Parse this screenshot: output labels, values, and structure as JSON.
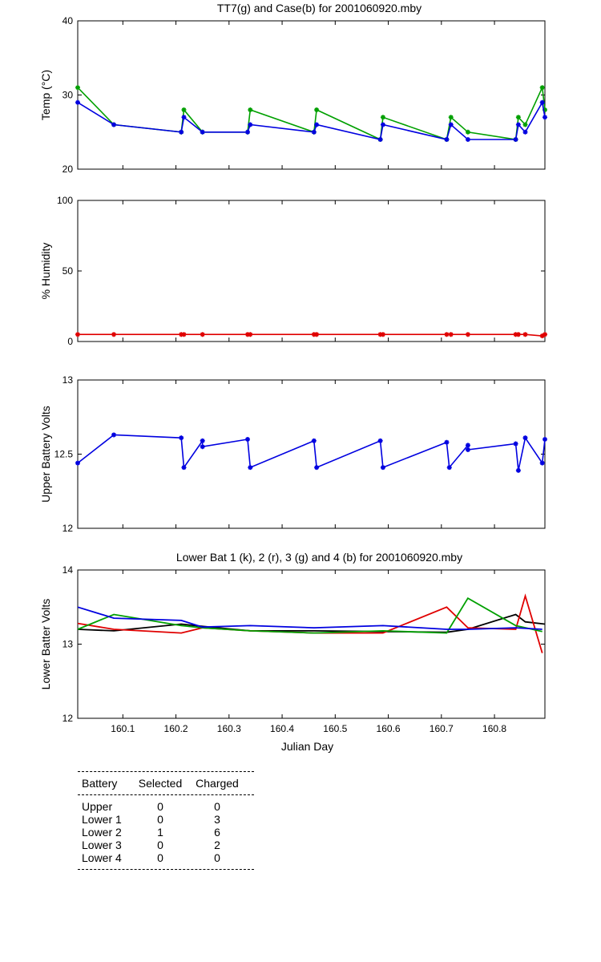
{
  "chart_data": [
    {
      "type": "line",
      "title": "TT7(g) and Case(b) for 2001060920.mby",
      "xlabel": "",
      "ylabel": "Temp  (°C)",
      "xlim": [
        160.015,
        160.895
      ],
      "ylim": [
        20,
        40
      ],
      "yticks": [
        20,
        30,
        40
      ],
      "series": [
        {
          "name": "TT7",
          "color": "#00a000",
          "x": [
            160.015,
            160.083,
            160.21,
            160.215,
            160.25,
            160.335,
            160.34,
            160.46,
            160.465,
            160.585,
            160.59,
            160.71,
            160.718,
            160.75,
            160.84,
            160.845,
            160.858,
            160.89,
            160.895
          ],
          "y": [
            31,
            26,
            25,
            28,
            25,
            25,
            28,
            25,
            28,
            24,
            27,
            24,
            27,
            25,
            24,
            27,
            26,
            31,
            28
          ]
        },
        {
          "name": "Case",
          "color": "#0000e0",
          "x": [
            160.015,
            160.083,
            160.21,
            160.215,
            160.25,
            160.335,
            160.34,
            160.46,
            160.465,
            160.585,
            160.59,
            160.71,
            160.718,
            160.75,
            160.84,
            160.845,
            160.858,
            160.89,
            160.895
          ],
          "y": [
            29,
            26,
            25,
            27,
            25,
            25,
            26,
            25,
            26,
            24,
            26,
            24,
            26,
            24,
            24,
            26,
            25,
            29,
            27
          ]
        }
      ]
    },
    {
      "type": "line",
      "title": "",
      "xlabel": "",
      "ylabel": "% Humidity",
      "xlim": [
        160.015,
        160.895
      ],
      "ylim": [
        0,
        100
      ],
      "yticks": [
        0,
        50,
        100
      ],
      "series": [
        {
          "name": "Humidity",
          "color": "#e00000",
          "x": [
            160.015,
            160.083,
            160.21,
            160.215,
            160.25,
            160.335,
            160.34,
            160.46,
            160.465,
            160.585,
            160.59,
            160.71,
            160.718,
            160.75,
            160.84,
            160.845,
            160.858,
            160.89,
            160.895
          ],
          "y": [
            5,
            5,
            5,
            5,
            5,
            5,
            5,
            5,
            5,
            5,
            5,
            5,
            5,
            5,
            5,
            5,
            5,
            4,
            5
          ]
        }
      ]
    },
    {
      "type": "line",
      "title": "",
      "xlabel": "",
      "ylabel": "Upper Battery Volts",
      "xlim": [
        160.015,
        160.895
      ],
      "ylim": [
        12,
        13
      ],
      "yticks": [
        12,
        12.5,
        13
      ],
      "series": [
        {
          "name": "Upper",
          "color": "#0000e0",
          "x": [
            160.015,
            160.083,
            160.21,
            160.215,
            160.25,
            160.25,
            160.335,
            160.34,
            160.46,
            160.465,
            160.585,
            160.59,
            160.71,
            160.715,
            160.75,
            160.75,
            160.84,
            160.845,
            160.858,
            160.89,
            160.895
          ],
          "y": [
            12.44,
            12.63,
            12.61,
            12.41,
            12.59,
            12.55,
            12.6,
            12.41,
            12.59,
            12.41,
            12.59,
            12.41,
            12.58,
            12.41,
            12.56,
            12.53,
            12.57,
            12.39,
            12.61,
            12.44,
            12.6
          ]
        }
      ]
    },
    {
      "type": "line",
      "title": "Lower Bat 1 (k), 2 (r), 3 (g) and 4 (b) for 2001060920.mby",
      "xlabel": "Julian Day",
      "ylabel": "Lower Batter Volts",
      "xlim": [
        160.015,
        160.895
      ],
      "ylim": [
        12,
        14
      ],
      "yticks": [
        12,
        13,
        14
      ],
      "xticks": [
        160.1,
        160.2,
        160.3,
        160.4,
        160.5,
        160.6,
        160.7,
        160.8
      ],
      "xticklabels": [
        "160.1",
        "160.2",
        "160.3",
        "160.4",
        "160.5",
        "160.6",
        "160.7",
        "160.8"
      ],
      "series": [
        {
          "name": "Lower 1",
          "color": "#000000",
          "x": [
            160.015,
            160.083,
            160.21,
            160.25,
            160.34,
            160.46,
            160.59,
            160.71,
            160.75,
            160.84,
            160.858,
            160.895
          ],
          "y": [
            13.2,
            13.18,
            13.27,
            13.24,
            13.18,
            13.18,
            13.17,
            13.16,
            13.2,
            13.4,
            13.3,
            13.27
          ]
        },
        {
          "name": "Lower 2",
          "color": "#e00000",
          "x": [
            160.015,
            160.083,
            160.21,
            160.25,
            160.34,
            160.46,
            160.59,
            160.71,
            160.75,
            160.84,
            160.858,
            160.89
          ],
          "y": [
            13.28,
            13.2,
            13.15,
            13.22,
            13.18,
            13.15,
            13.15,
            13.5,
            13.22,
            13.2,
            13.65,
            12.88
          ]
        },
        {
          "name": "Lower 3",
          "color": "#00a000",
          "x": [
            160.015,
            160.083,
            160.21,
            160.25,
            160.34,
            160.46,
            160.59,
            160.71,
            160.75,
            160.84,
            160.89
          ],
          "y": [
            13.2,
            13.4,
            13.25,
            13.22,
            13.18,
            13.15,
            13.18,
            13.15,
            13.62,
            13.25,
            13.17
          ]
        },
        {
          "name": "Lower 4",
          "color": "#0000e0",
          "x": [
            160.015,
            160.083,
            160.21,
            160.25,
            160.34,
            160.46,
            160.59,
            160.71,
            160.75,
            160.84,
            160.89
          ],
          "y": [
            13.5,
            13.35,
            13.32,
            13.23,
            13.25,
            13.22,
            13.25,
            13.2,
            13.2,
            13.22,
            13.2
          ]
        }
      ]
    }
  ],
  "battery_table": {
    "headers": [
      "Battery",
      "Selected",
      "Charged"
    ],
    "rows": [
      [
        "Upper",
        "0",
        "0"
      ],
      [
        "Lower 1",
        "0",
        "3"
      ],
      [
        "Lower 2",
        "1",
        "6"
      ],
      [
        "Lower 3",
        "0",
        "2"
      ],
      [
        "Lower 4",
        "0",
        "0"
      ]
    ]
  }
}
